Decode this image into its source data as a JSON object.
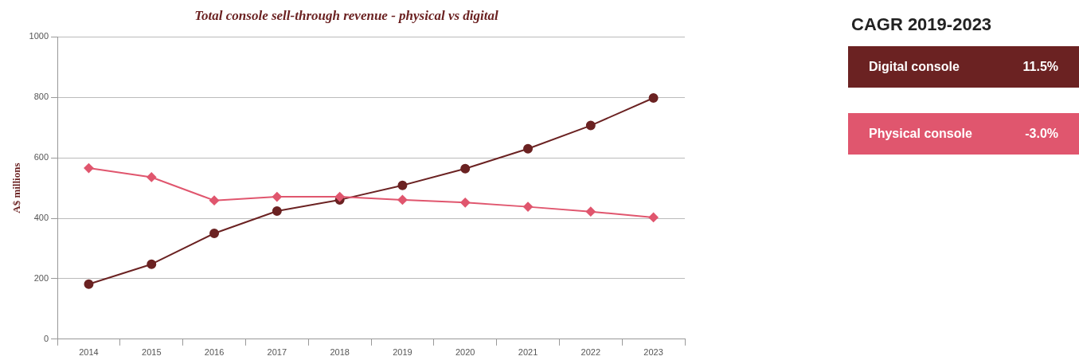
{
  "chart_data": {
    "type": "line",
    "title": "Total console sell-through revenue - physical vs digital",
    "ylabel": "A$ millions",
    "legend_title": "CAGR 2019-2023",
    "legend": "right",
    "grid": "y",
    "categories": [
      "2014",
      "2015",
      "2016",
      "2017",
      "2018",
      "2019",
      "2020",
      "2021",
      "2022",
      "2023"
    ],
    "ylim": [
      0,
      1000
    ],
    "yticks": [
      0,
      200,
      400,
      600,
      800,
      1000
    ],
    "series": [
      {
        "name": "Digital console",
        "color": "#6b2222",
        "marker": "circle",
        "values": [
          182,
          248,
          350,
          424,
          461,
          509,
          564,
          630,
          707,
          798
        ]
      },
      {
        "name": "Physical console",
        "color": "#e0566e",
        "marker": "diamond",
        "values": [
          566,
          536,
          459,
          471,
          471,
          461,
          452,
          438,
          422,
          403
        ]
      }
    ],
    "annotations": [
      "11.5%",
      "-3.0%"
    ]
  }
}
